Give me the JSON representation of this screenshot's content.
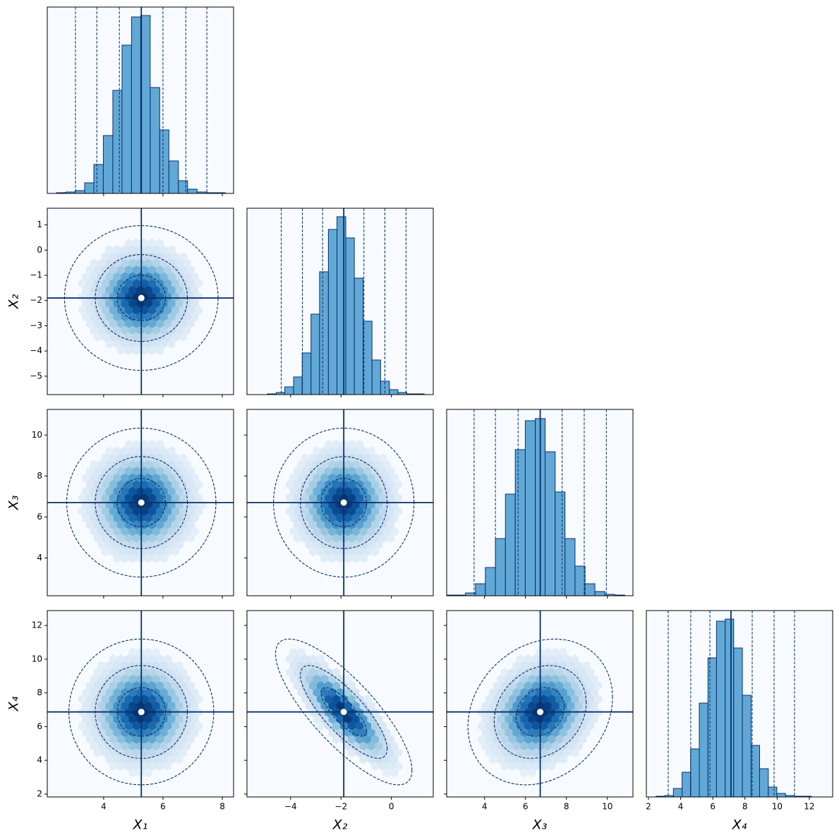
{
  "chart_data": [
    {
      "type": "histogram",
      "bins": [
        2.41,
        2.73,
        3.04,
        3.36,
        3.67,
        3.99,
        4.31,
        4.62,
        4.94,
        5.25,
        5.57,
        5.89,
        6.2,
        6.52,
        6.83,
        7.15,
        7.47,
        7.78,
        8.1
      ],
      "values": [
        1,
        2,
        4,
        15,
        41,
        82,
        146,
        210,
        250,
        252,
        150,
        90,
        46,
        18,
        6,
        2,
        1,
        1
      ],
      "xlim": [
        2.1,
        8.38
      ],
      "ylim": [
        0,
        264
      ],
      "median": 5.27,
      "quantiles": [
        3.05,
        3.77,
        4.53,
        6.0,
        6.77,
        7.48
      ],
      "color": "#62a8d6",
      "line_color": "#08306b"
    },
    {
      "type": "hexbin",
      "center": [
        5.27,
        -1.9
      ],
      "sd": [
        0.74,
        0.82
      ],
      "corr": 0,
      "contour_levels": [
        1.1,
        2.1,
        3.5
      ],
      "xlim": [
        2.1,
        8.38
      ],
      "ylim": [
        -5.73,
        1.66
      ],
      "yticks": [
        {
          "value": 1,
          "label": "1"
        },
        0,
        {
          "value": -1,
          "label": "−1"
        },
        {
          "value": -2,
          "label": "−2"
        },
        {
          "value": -3,
          "label": "−3"
        },
        {
          "value": -4,
          "label": "−4"
        },
        {
          "value": -5,
          "label": "−5"
        }
      ],
      "ylabel": "X₂",
      "cmap": "Blues",
      "line_color": "#08306b"
    },
    {
      "type": "histogram",
      "bins": [
        -4.92,
        -4.57,
        -4.23,
        -3.88,
        -3.54,
        -3.19,
        -2.85,
        -2.5,
        -2.16,
        -1.81,
        -1.47,
        -1.12,
        -0.77,
        -0.43,
        -0.08,
        0.26,
        0.61,
        0.95,
        1.3
      ],
      "values": [
        1,
        3,
        11,
        25,
        59,
        114,
        174,
        234,
        252,
        222,
        165,
        104,
        49,
        19,
        7,
        3,
        1,
        1
      ],
      "xlim": [
        -5.73,
        1.66
      ],
      "ylim": [
        0,
        264
      ],
      "median": -1.89,
      "quantiles": [
        -4.37,
        -3.53,
        -2.73,
        -1.09,
        -0.26,
        0.58
      ],
      "color": "#62a8d6",
      "line_color": "#08306b"
    },
    {
      "type": "hexbin",
      "center": [
        5.27,
        6.7
      ],
      "sd": [
        0.74,
        1.07
      ],
      "corr": 0,
      "contour_levels": [
        1.1,
        2.1,
        3.4
      ],
      "xlim": [
        2.1,
        8.38
      ],
      "ylim": [
        2.15,
        11.25
      ],
      "yticks": [
        4,
        6,
        8,
        10
      ],
      "ylabel": "X₃",
      "cmap": "Blues",
      "line_color": "#08306b"
    },
    {
      "type": "hexbin",
      "center": [
        -1.89,
        6.7
      ],
      "sd": [
        0.82,
        1.07
      ],
      "corr": 0,
      "contour_levels": [
        1.1,
        2.1,
        3.4
      ],
      "xlim": [
        -5.73,
        1.66
      ],
      "ylim": [
        2.15,
        11.25
      ],
      "cmap": "Blues",
      "line_color": "#08306b"
    },
    {
      "type": "histogram",
      "bins": [
        2.1,
        2.59,
        3.07,
        3.56,
        4.04,
        4.53,
        5.02,
        5.5,
        5.99,
        6.48,
        6.96,
        7.45,
        7.93,
        8.42,
        8.91,
        9.39,
        9.88,
        10.36,
        10.85
      ],
      "values": [
        1,
        1,
        4,
        17,
        40,
        81,
        144,
        207,
        248,
        251,
        204,
        147,
        81,
        42,
        17,
        6,
        2,
        1
      ],
      "xlim": [
        2.15,
        11.25
      ],
      "ylim": [
        0,
        264
      ],
      "median": 6.72,
      "quantiles": [
        3.49,
        4.53,
        5.64,
        7.79,
        8.87,
        9.95
      ],
      "color": "#62a8d6",
      "line_color": "#08306b"
    },
    {
      "type": "hexbin",
      "center": [
        5.27,
        6.87
      ],
      "sd": [
        0.74,
        1.31
      ],
      "corr": 0,
      "contour_levels": [
        1.1,
        2.1,
        3.3
      ],
      "xlim": [
        2.1,
        8.38
      ],
      "ylim": [
        1.83,
        12.88
      ],
      "xticks": [
        4,
        6,
        8
      ],
      "yticks": [
        2,
        4,
        6,
        8,
        10,
        12
      ],
      "xlabel": "X₁",
      "ylabel": "X₄",
      "cmap": "Blues",
      "line_color": "#08306b"
    },
    {
      "type": "hexbin",
      "center": [
        -1.89,
        6.87
      ],
      "sd": [
        0.82,
        1.31
      ],
      "corr": -0.8,
      "contour_levels": [
        1.1,
        2.1,
        3.3
      ],
      "xlim": [
        -5.73,
        1.66
      ],
      "ylim": [
        1.83,
        12.88
      ],
      "xticks": [
        {
          "value": -4,
          "label": "−4"
        },
        {
          "value": -2,
          "label": "−2"
        },
        0
      ],
      "xlabel": "X₂",
      "cmap": "Blues",
      "line_color": "#08306b"
    },
    {
      "type": "hexbin",
      "center": [
        6.72,
        6.87
      ],
      "sd": [
        1.07,
        1.31
      ],
      "corr": 0.2,
      "contour_levels": [
        1.1,
        2.1,
        3.3
      ],
      "xlim": [
        2.15,
        11.25
      ],
      "ylim": [
        1.83,
        12.88
      ],
      "xticks": [
        4,
        6,
        8,
        10
      ],
      "xlabel": "X₃",
      "cmap": "Blues",
      "line_color": "#08306b"
    },
    {
      "type": "histogram",
      "bins": [
        2.48,
        3.02,
        3.55,
        4.09,
        4.62,
        5.16,
        5.7,
        6.23,
        6.77,
        7.3,
        7.84,
        8.38,
        8.91,
        9.45,
        9.98,
        10.52,
        11.06,
        11.59,
        12.13
      ],
      "values": [
        1,
        2,
        12,
        35,
        68,
        133,
        197,
        249,
        252,
        211,
        144,
        73,
        40,
        14,
        5,
        2,
        1,
        1
      ],
      "xlim": [
        1.87,
        13.45
      ],
      "ylim": [
        0,
        264
      ],
      "median": 7.13,
      "quantiles": [
        3.23,
        4.63,
        5.82,
        8.45,
        9.81,
        11.08
      ],
      "xticks": [
        2,
        4,
        6,
        8,
        10,
        12
      ],
      "xlabel": "X₄",
      "color": "#62a8d6",
      "line_color": "#08306b"
    }
  ]
}
